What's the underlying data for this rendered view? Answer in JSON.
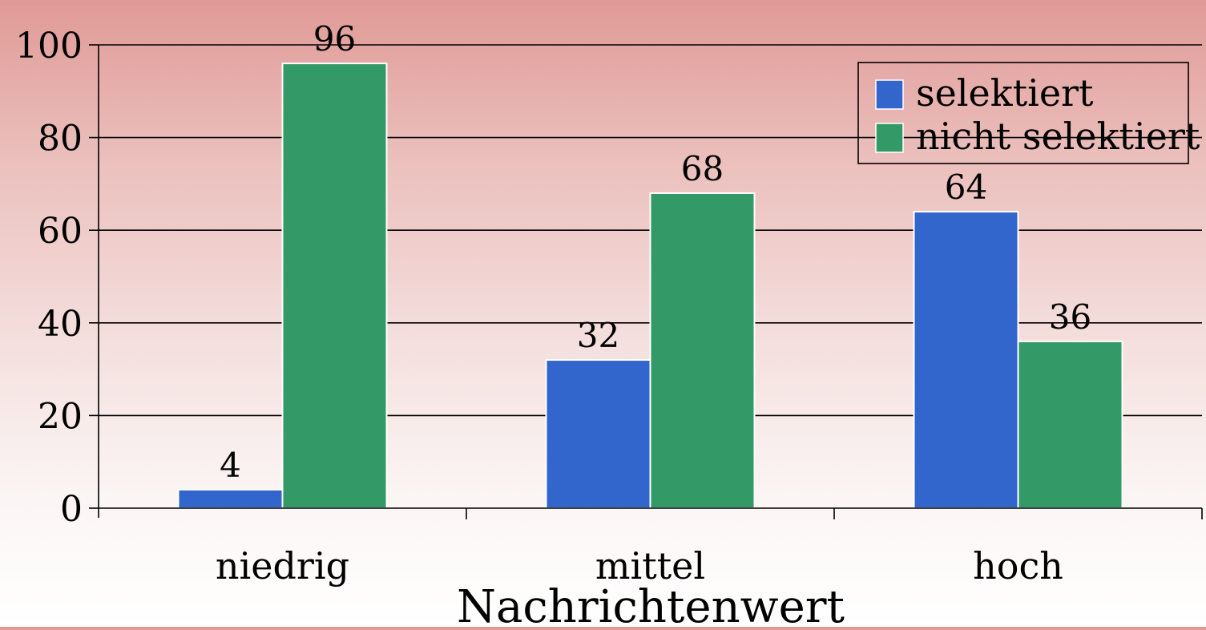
{
  "chart_data": {
    "type": "bar",
    "categories": [
      "niedrig",
      "mittel",
      "hoch"
    ],
    "series": [
      {
        "name": "selektiert",
        "values": [
          4,
          32,
          64
        ],
        "color": "#3366cc"
      },
      {
        "name": "nicht selektiert",
        "values": [
          96,
          68,
          36
        ],
        "color": "#339966"
      }
    ],
    "title": "",
    "xlabel": "Nachrichtenwert",
    "ylabel": "",
    "ylim": [
      0,
      100
    ],
    "yticks": [
      "0",
      "20",
      "40",
      "60",
      "80",
      "100"
    ],
    "grid": true,
    "legend": "top-right",
    "data_labels": true
  }
}
